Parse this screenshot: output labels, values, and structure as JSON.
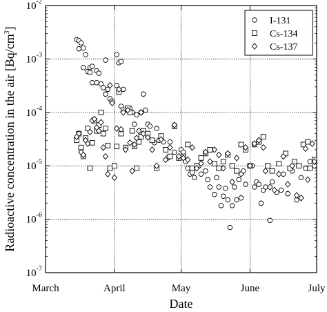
{
  "chart_data": {
    "type": "scatter",
    "title": "",
    "xlabel": "Date",
    "ylabel": "Radioactive concentration in the air [Bq/cm3]",
    "ylabel_main": "Radioactive concentration in the air [Bq/cm",
    "ylabel_sup": "3",
    "ylabel_tail": "]",
    "yscale": "log",
    "ylim": [
      1e-07,
      0.01
    ],
    "xlim": [
      "2011-03-01",
      "2011-07-01"
    ],
    "x_ticks": [
      {
        "date": "2011-03-01",
        "label": "March"
      },
      {
        "date": "2011-04-01",
        "label": "April"
      },
      {
        "date": "2011-05-01",
        "label": "May"
      },
      {
        "date": "2011-06-01",
        "label": "June"
      },
      {
        "date": "2011-07-01",
        "label": "July"
      }
    ],
    "y_ticks": [
      {
        "value": 1e-07,
        "base": "10",
        "exp": "-7"
      },
      {
        "value": 1e-06,
        "base": "10",
        "exp": "-6"
      },
      {
        "value": 1e-05,
        "base": "10",
        "exp": "-5"
      },
      {
        "value": 0.0001,
        "base": "10",
        "exp": "-4"
      },
      {
        "value": 0.001,
        "base": "10",
        "exp": "-3"
      },
      {
        "value": 0.01,
        "base": "10",
        "exp": "-2"
      }
    ],
    "grid": true,
    "legend_position": "top-right",
    "series": [
      {
        "name": "I-131",
        "marker": "circle",
        "points": [
          [
            "2011-03-15",
            0.0023
          ],
          [
            "2011-03-16",
            0.0022
          ],
          [
            "2011-03-16",
            0.00155
          ],
          [
            "2011-03-17",
            0.002
          ],
          [
            "2011-03-18",
            0.0016
          ],
          [
            "2011-03-18",
            0.00069
          ],
          [
            "2011-03-19",
            0.0012
          ],
          [
            "2011-03-20",
            0.00058
          ],
          [
            "2011-03-21",
            0.00069
          ],
          [
            "2011-03-21",
            0.00056
          ],
          [
            "2011-03-22",
            0.00073
          ],
          [
            "2011-03-22",
            0.00036
          ],
          [
            "2011-03-24",
            0.0006
          ],
          [
            "2011-03-24",
            0.00036
          ],
          [
            "2011-03-25",
            0.00054
          ],
          [
            "2011-03-26",
            0.00034
          ],
          [
            "2011-03-27",
            0.00029
          ],
          [
            "2011-03-28",
            0.00095
          ],
          [
            "2011-03-28",
            0.00022
          ],
          [
            "2011-03-29",
            0.00027
          ],
          [
            "2011-03-30",
            0.00018
          ],
          [
            "2011-03-31",
            0.00016
          ],
          [
            "2011-04-02",
            0.00032
          ],
          [
            "2011-04-02",
            0.0012
          ],
          [
            "2011-04-03",
            0.00085
          ],
          [
            "2011-04-04",
            0.0009
          ],
          [
            "2011-04-04",
            0.00013
          ],
          [
            "2011-04-05",
            0.00027
          ],
          [
            "2011-04-06",
            0.00011
          ],
          [
            "2011-04-07",
            0.00012
          ],
          [
            "2011-04-08",
            0.00012
          ],
          [
            "2011-04-09",
            0.0001
          ],
          [
            "2011-04-10",
            6e-05
          ],
          [
            "2011-04-11",
            9e-05
          ],
          [
            "2011-04-13",
            0.0001
          ],
          [
            "2011-04-14",
            0.00022
          ],
          [
            "2011-04-15",
            0.00011
          ],
          [
            "2011-04-16",
            6e-05
          ],
          [
            "2011-04-17",
            5.5e-05
          ],
          [
            "2011-04-19",
            2.7e-05
          ],
          [
            "2011-04-20",
            5e-05
          ],
          [
            "2011-04-21",
            3e-05
          ],
          [
            "2011-04-23",
            2.8e-05
          ],
          [
            "2011-04-25",
            1.4e-05
          ],
          [
            "2011-04-26",
            2.8e-05
          ],
          [
            "2011-04-28",
            1.8e-05
          ],
          [
            "2011-05-01",
            2e-05
          ],
          [
            "2011-05-02",
            1.8e-05
          ],
          [
            "2011-05-03",
            1.2e-05
          ],
          [
            "2011-05-04",
            9e-06
          ],
          [
            "2011-05-05",
            7e-06
          ],
          [
            "2011-05-06",
            7.5e-06
          ],
          [
            "2011-05-07",
            6e-06
          ],
          [
            "2011-05-09",
            1e-05
          ],
          [
            "2011-05-10",
            7e-06
          ],
          [
            "2011-05-12",
            8e-06
          ],
          [
            "2011-05-13",
            5.5e-06
          ],
          [
            "2011-05-14",
            4e-06
          ],
          [
            "2011-05-16",
            2.9e-06
          ],
          [
            "2011-05-17",
            6e-06
          ],
          [
            "2011-05-18",
            4e-06
          ],
          [
            "2011-05-19",
            1.8e-06
          ],
          [
            "2011-05-20",
            2.7e-06
          ],
          [
            "2011-05-21",
            3.8e-06
          ],
          [
            "2011-05-22",
            2.3e-06
          ],
          [
            "2011-05-23",
            7e-07
          ],
          [
            "2011-05-24",
            1.8e-06
          ],
          [
            "2011-05-25",
            4e-06
          ],
          [
            "2011-05-26",
            2.3e-06
          ],
          [
            "2011-05-27",
            5.5e-06
          ],
          [
            "2011-05-28",
            2.5e-06
          ],
          [
            "2011-05-29",
            8e-06
          ],
          [
            "2011-05-30",
            4.5e-06
          ],
          [
            "2011-06-02",
            1e-05
          ],
          [
            "2011-06-03",
            4e-06
          ],
          [
            "2011-06-04",
            5e-06
          ],
          [
            "2011-06-05",
            4.5e-06
          ],
          [
            "2011-06-06",
            2e-06
          ],
          [
            "2011-06-07",
            3.5e-06
          ],
          [
            "2011-06-08",
            4e-06
          ],
          [
            "2011-06-10",
            9.5e-07
          ],
          [
            "2011-06-11",
            5e-06
          ],
          [
            "2011-06-13",
            3.2e-06
          ],
          [
            "2011-06-15",
            3.5e-06
          ],
          [
            "2011-06-16",
            7e-06
          ],
          [
            "2011-06-18",
            3e-06
          ],
          [
            "2011-06-20",
            8e-06
          ],
          [
            "2011-06-22",
            2.3e-06
          ],
          [
            "2011-06-24",
            6e-06
          ],
          [
            "2011-06-26",
            9e-06
          ],
          [
            "2011-06-28",
            1.2e-05
          ],
          [
            "2011-06-30",
            1e-05
          ]
        ]
      },
      {
        "name": "Cs-134",
        "marker": "square",
        "points": [
          [
            "2011-03-15",
            3e-05
          ],
          [
            "2011-03-16",
            4e-05
          ],
          [
            "2011-03-17",
            2.2e-05
          ],
          [
            "2011-03-18",
            1.5e-05
          ],
          [
            "2011-03-19",
            3.3e-05
          ],
          [
            "2011-03-20",
            5e-05
          ],
          [
            "2011-03-21",
            9e-06
          ],
          [
            "2011-03-22",
            2.7e-05
          ],
          [
            "2011-03-23",
            7e-05
          ],
          [
            "2011-03-24",
            4.5e-05
          ],
          [
            "2011-03-25",
            5.8e-05
          ],
          [
            "2011-03-26",
            0.0001
          ],
          [
            "2011-03-27",
            4e-05
          ],
          [
            "2011-03-28",
            5e-05
          ],
          [
            "2011-03-29",
            2.4e-05
          ],
          [
            "2011-03-30",
            9e-06
          ],
          [
            "2011-03-31",
            0.00016
          ],
          [
            "2011-04-01",
            1e-05
          ],
          [
            "2011-04-02",
            2.3e-05
          ],
          [
            "2011-04-03",
            0.00024
          ],
          [
            "2011-04-04",
            4e-05
          ],
          [
            "2011-04-05",
            0.00011
          ],
          [
            "2011-04-06",
            2.2e-05
          ],
          [
            "2011-04-07",
            0.00012
          ],
          [
            "2011-04-08",
            0.0001
          ],
          [
            "2011-04-09",
            4.5e-05
          ],
          [
            "2011-04-10",
            2.3e-05
          ],
          [
            "2011-04-11",
            9e-06
          ],
          [
            "2011-04-12",
            2.8e-05
          ],
          [
            "2011-04-13",
            3.5e-05
          ],
          [
            "2011-04-14",
            4.5e-05
          ],
          [
            "2011-04-16",
            4e-05
          ],
          [
            "2011-04-18",
            3e-05
          ],
          [
            "2011-04-20",
            9e-06
          ],
          [
            "2011-04-22",
            3.6e-05
          ],
          [
            "2011-04-24",
            2e-05
          ],
          [
            "2011-04-26",
            1.5e-05
          ],
          [
            "2011-04-28",
            5.5e-05
          ],
          [
            "2011-04-30",
            1.4e-05
          ],
          [
            "2011-05-02",
            1.5e-05
          ],
          [
            "2011-05-04",
            2.5e-05
          ],
          [
            "2011-05-06",
            9e-06
          ],
          [
            "2011-05-08",
            1e-05
          ],
          [
            "2011-05-10",
            1.4e-05
          ],
          [
            "2011-05-12",
            1.7e-05
          ],
          [
            "2011-05-14",
            2e-05
          ],
          [
            "2011-05-16",
            1.1e-05
          ],
          [
            "2011-05-18",
            9e-06
          ],
          [
            "2011-05-20",
            1.2e-05
          ],
          [
            "2011-05-22",
            1.6e-05
          ],
          [
            "2011-05-24",
            1e-05
          ],
          [
            "2011-05-26",
            8e-06
          ],
          [
            "2011-05-28",
            2.5e-05
          ],
          [
            "2011-05-30",
            2e-05
          ],
          [
            "2011-06-01",
            1e-05
          ],
          [
            "2011-06-03",
            2.5e-05
          ],
          [
            "2011-06-05",
            2.8e-05
          ],
          [
            "2011-06-07",
            3.5e-05
          ],
          [
            "2011-06-09",
            1e-05
          ],
          [
            "2011-06-11",
            8e-06
          ],
          [
            "2011-06-14",
            1.1e-05
          ],
          [
            "2011-06-17",
            1.7e-05
          ],
          [
            "2011-06-19",
            9e-06
          ],
          [
            "2011-06-21",
            1.2e-05
          ],
          [
            "2011-06-23",
            1e-05
          ],
          [
            "2011-06-25",
            2.5e-05
          ],
          [
            "2011-06-27",
            2.8e-05
          ],
          [
            "2011-06-28",
            9e-06
          ],
          [
            "2011-06-30",
            1.3e-05
          ]
        ]
      },
      {
        "name": "Cs-137",
        "marker": "diamond",
        "points": [
          [
            "2011-03-15",
            3.5e-05
          ],
          [
            "2011-03-16",
            4e-05
          ],
          [
            "2011-03-17",
            1.8e-05
          ],
          [
            "2011-03-18",
            1.6e-05
          ],
          [
            "2011-03-19",
            3e-05
          ],
          [
            "2011-03-20",
            2.6e-05
          ],
          [
            "2011-03-21",
            4.3e-05
          ],
          [
            "2011-03-22",
            7e-05
          ],
          [
            "2011-03-23",
            7.5e-05
          ],
          [
            "2011-03-24",
            5.2e-05
          ],
          [
            "2011-03-25",
            4.5e-05
          ],
          [
            "2011-03-26",
            6.5e-05
          ],
          [
            "2011-03-27",
            2.2e-05
          ],
          [
            "2011-03-28",
            1.5e-05
          ],
          [
            "2011-03-29",
            7e-06
          ],
          [
            "2011-03-30",
            0.00032
          ],
          [
            "2011-03-31",
            0.00015
          ],
          [
            "2011-04-01",
            6e-06
          ],
          [
            "2011-04-02",
            5e-05
          ],
          [
            "2011-04-03",
            0.00027
          ],
          [
            "2011-04-04",
            4.8e-05
          ],
          [
            "2011-04-05",
            0.0001
          ],
          [
            "2011-04-06",
            2e-05
          ],
          [
            "2011-04-07",
            0.00011
          ],
          [
            "2011-04-08",
            2.7e-05
          ],
          [
            "2011-04-09",
            8e-06
          ],
          [
            "2011-04-10",
            2.5e-05
          ],
          [
            "2011-04-11",
            3.3e-05
          ],
          [
            "2011-04-12",
            4.5e-05
          ],
          [
            "2011-04-13",
            0.0001
          ],
          [
            "2011-04-14",
            4e-05
          ],
          [
            "2011-04-16",
            3.4e-05
          ],
          [
            "2011-04-18",
            2e-05
          ],
          [
            "2011-04-20",
            1e-05
          ],
          [
            "2011-04-22",
            3.1e-05
          ],
          [
            "2011-04-24",
            1.3e-05
          ],
          [
            "2011-04-26",
            2.2e-05
          ],
          [
            "2011-04-28",
            5.8e-05
          ],
          [
            "2011-04-30",
            1.5e-05
          ],
          [
            "2011-05-02",
            1.4e-05
          ],
          [
            "2011-05-04",
            1.3e-05
          ],
          [
            "2011-05-06",
            2.2e-05
          ],
          [
            "2011-05-08",
            9e-06
          ],
          [
            "2011-05-10",
            1.1e-05
          ],
          [
            "2011-05-12",
            1.8e-05
          ],
          [
            "2011-05-14",
            1.2e-05
          ],
          [
            "2011-05-16",
            2e-05
          ],
          [
            "2011-05-18",
            1.6e-05
          ],
          [
            "2011-05-20",
            9e-06
          ],
          [
            "2011-05-22",
            1.7e-05
          ],
          [
            "2011-05-24",
            5e-06
          ],
          [
            "2011-05-26",
            1.4e-05
          ],
          [
            "2011-05-28",
            7e-06
          ],
          [
            "2011-05-30",
            2.2e-05
          ],
          [
            "2011-06-01",
            1e-05
          ],
          [
            "2011-06-03",
            2.6e-05
          ],
          [
            "2011-06-05",
            3e-05
          ],
          [
            "2011-06-07",
            2.2e-05
          ],
          [
            "2011-06-08",
            8e-06
          ],
          [
            "2011-06-10",
            4e-06
          ],
          [
            "2011-06-12",
            3.5e-06
          ],
          [
            "2011-06-14",
            7e-06
          ],
          [
            "2011-06-16",
            1.5e-05
          ],
          [
            "2011-06-18",
            4.5e-06
          ],
          [
            "2011-06-20",
            1e-05
          ],
          [
            "2011-06-22",
            2.8e-06
          ],
          [
            "2011-06-24",
            2.5e-06
          ],
          [
            "2011-06-26",
            2.1e-05
          ],
          [
            "2011-06-27",
            5.5e-06
          ],
          [
            "2011-06-29",
            2.6e-05
          ],
          [
            "2011-06-30",
            1.2e-05
          ]
        ]
      }
    ]
  }
}
